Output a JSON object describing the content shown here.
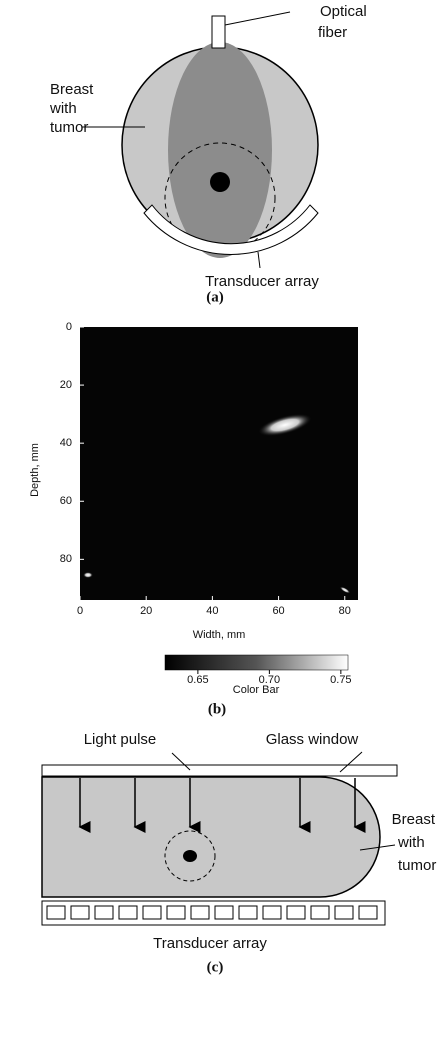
{
  "panel_a": {
    "labels": {
      "optical_fiber": [
        "Optical",
        "fiber"
      ],
      "breast": [
        "Breast",
        "with",
        "tumor"
      ],
      "transducer": "Transducer array"
    },
    "caption": "(a)"
  },
  "panel_b": {
    "ylabel": "Depth, mm",
    "xlabel": "Width, mm",
    "xlim": [
      0,
      84
    ],
    "ylim": [
      0,
      94
    ],
    "xticks": [
      0,
      20,
      40,
      60,
      80
    ],
    "yticks": [
      0,
      20,
      40,
      60,
      80
    ],
    "colorbar": {
      "label": "Color Bar",
      "lim": [
        0.627,
        0.755
      ],
      "ticks": [
        0.65,
        {
          "value": 0.7,
          "label": "0.70"
        },
        0.75
      ]
    },
    "caption": "(b)"
  },
  "panel_c": {
    "labels": {
      "light_pulse": "Light pulse",
      "glass_window": "Glass window",
      "breast": [
        "Breast",
        "with",
        "tumor"
      ],
      "transducer": "Transducer array"
    },
    "caption": "(c)"
  }
}
